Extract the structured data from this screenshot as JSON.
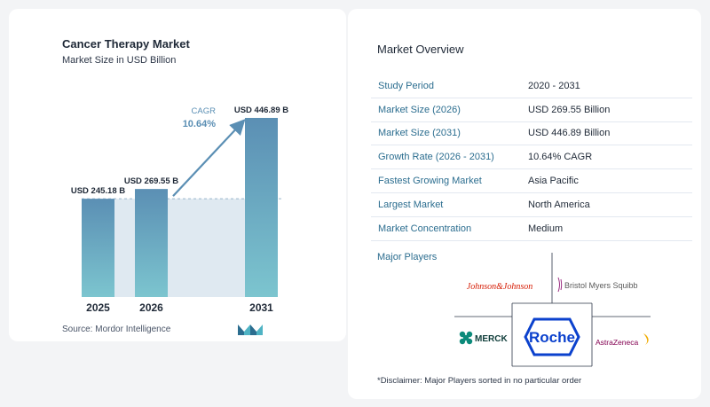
{
  "chart_data": {
    "type": "bar",
    "title": "Cancer Therapy Market",
    "subtitle": "Market Size in USD Billion",
    "categories": [
      "2025",
      "2026",
      "2031"
    ],
    "values": [
      245.18,
      269.55,
      446.89
    ],
    "data_labels": [
      "USD 245.18 B",
      "USD 269.55 B",
      "USD 446.89 B"
    ],
    "ylim": [
      0,
      480
    ],
    "cagr_label": "CAGR",
    "cagr_value": "10.64%",
    "colors": {
      "bar_top": "#5b8fb4",
      "bar_bottom": "#7cc5cf",
      "band": "#dfe9f1",
      "arrow": "#5b8fb4",
      "cagr": "#5b8fb4"
    }
  },
  "source": "Source:  Mordor Intelligence",
  "overview": {
    "title": "Market Overview",
    "rows": [
      {
        "key": "Study Period",
        "value": "2020 - 2031"
      },
      {
        "key": "Market Size (2026)",
        "value": "USD 269.55 Billion"
      },
      {
        "key": "Market Size (2031)",
        "value": "USD 446.89 Billion"
      },
      {
        "key": "Growth Rate (2026 - 2031)",
        "value": "10.64% CAGR"
      },
      {
        "key": "Fastest Growing Market",
        "value": "Asia Pacific"
      },
      {
        "key": "Largest Market",
        "value": "North America"
      },
      {
        "key": "Market Concentration",
        "value": "Medium"
      }
    ]
  },
  "players": {
    "title": "Major Players",
    "names": [
      "Johnson&Johnson",
      "Bristol Myers Squibb",
      "MERCK",
      "Roche",
      "AstraZeneca"
    ],
    "colors": {
      "jnj": "#d51900",
      "bms": "#9b2f82",
      "merck": "#0b8a7a",
      "roche": "#0b41cd",
      "astra": "#830051"
    }
  },
  "disclaimer": "*Disclaimer: Major Players sorted in no particular order"
}
